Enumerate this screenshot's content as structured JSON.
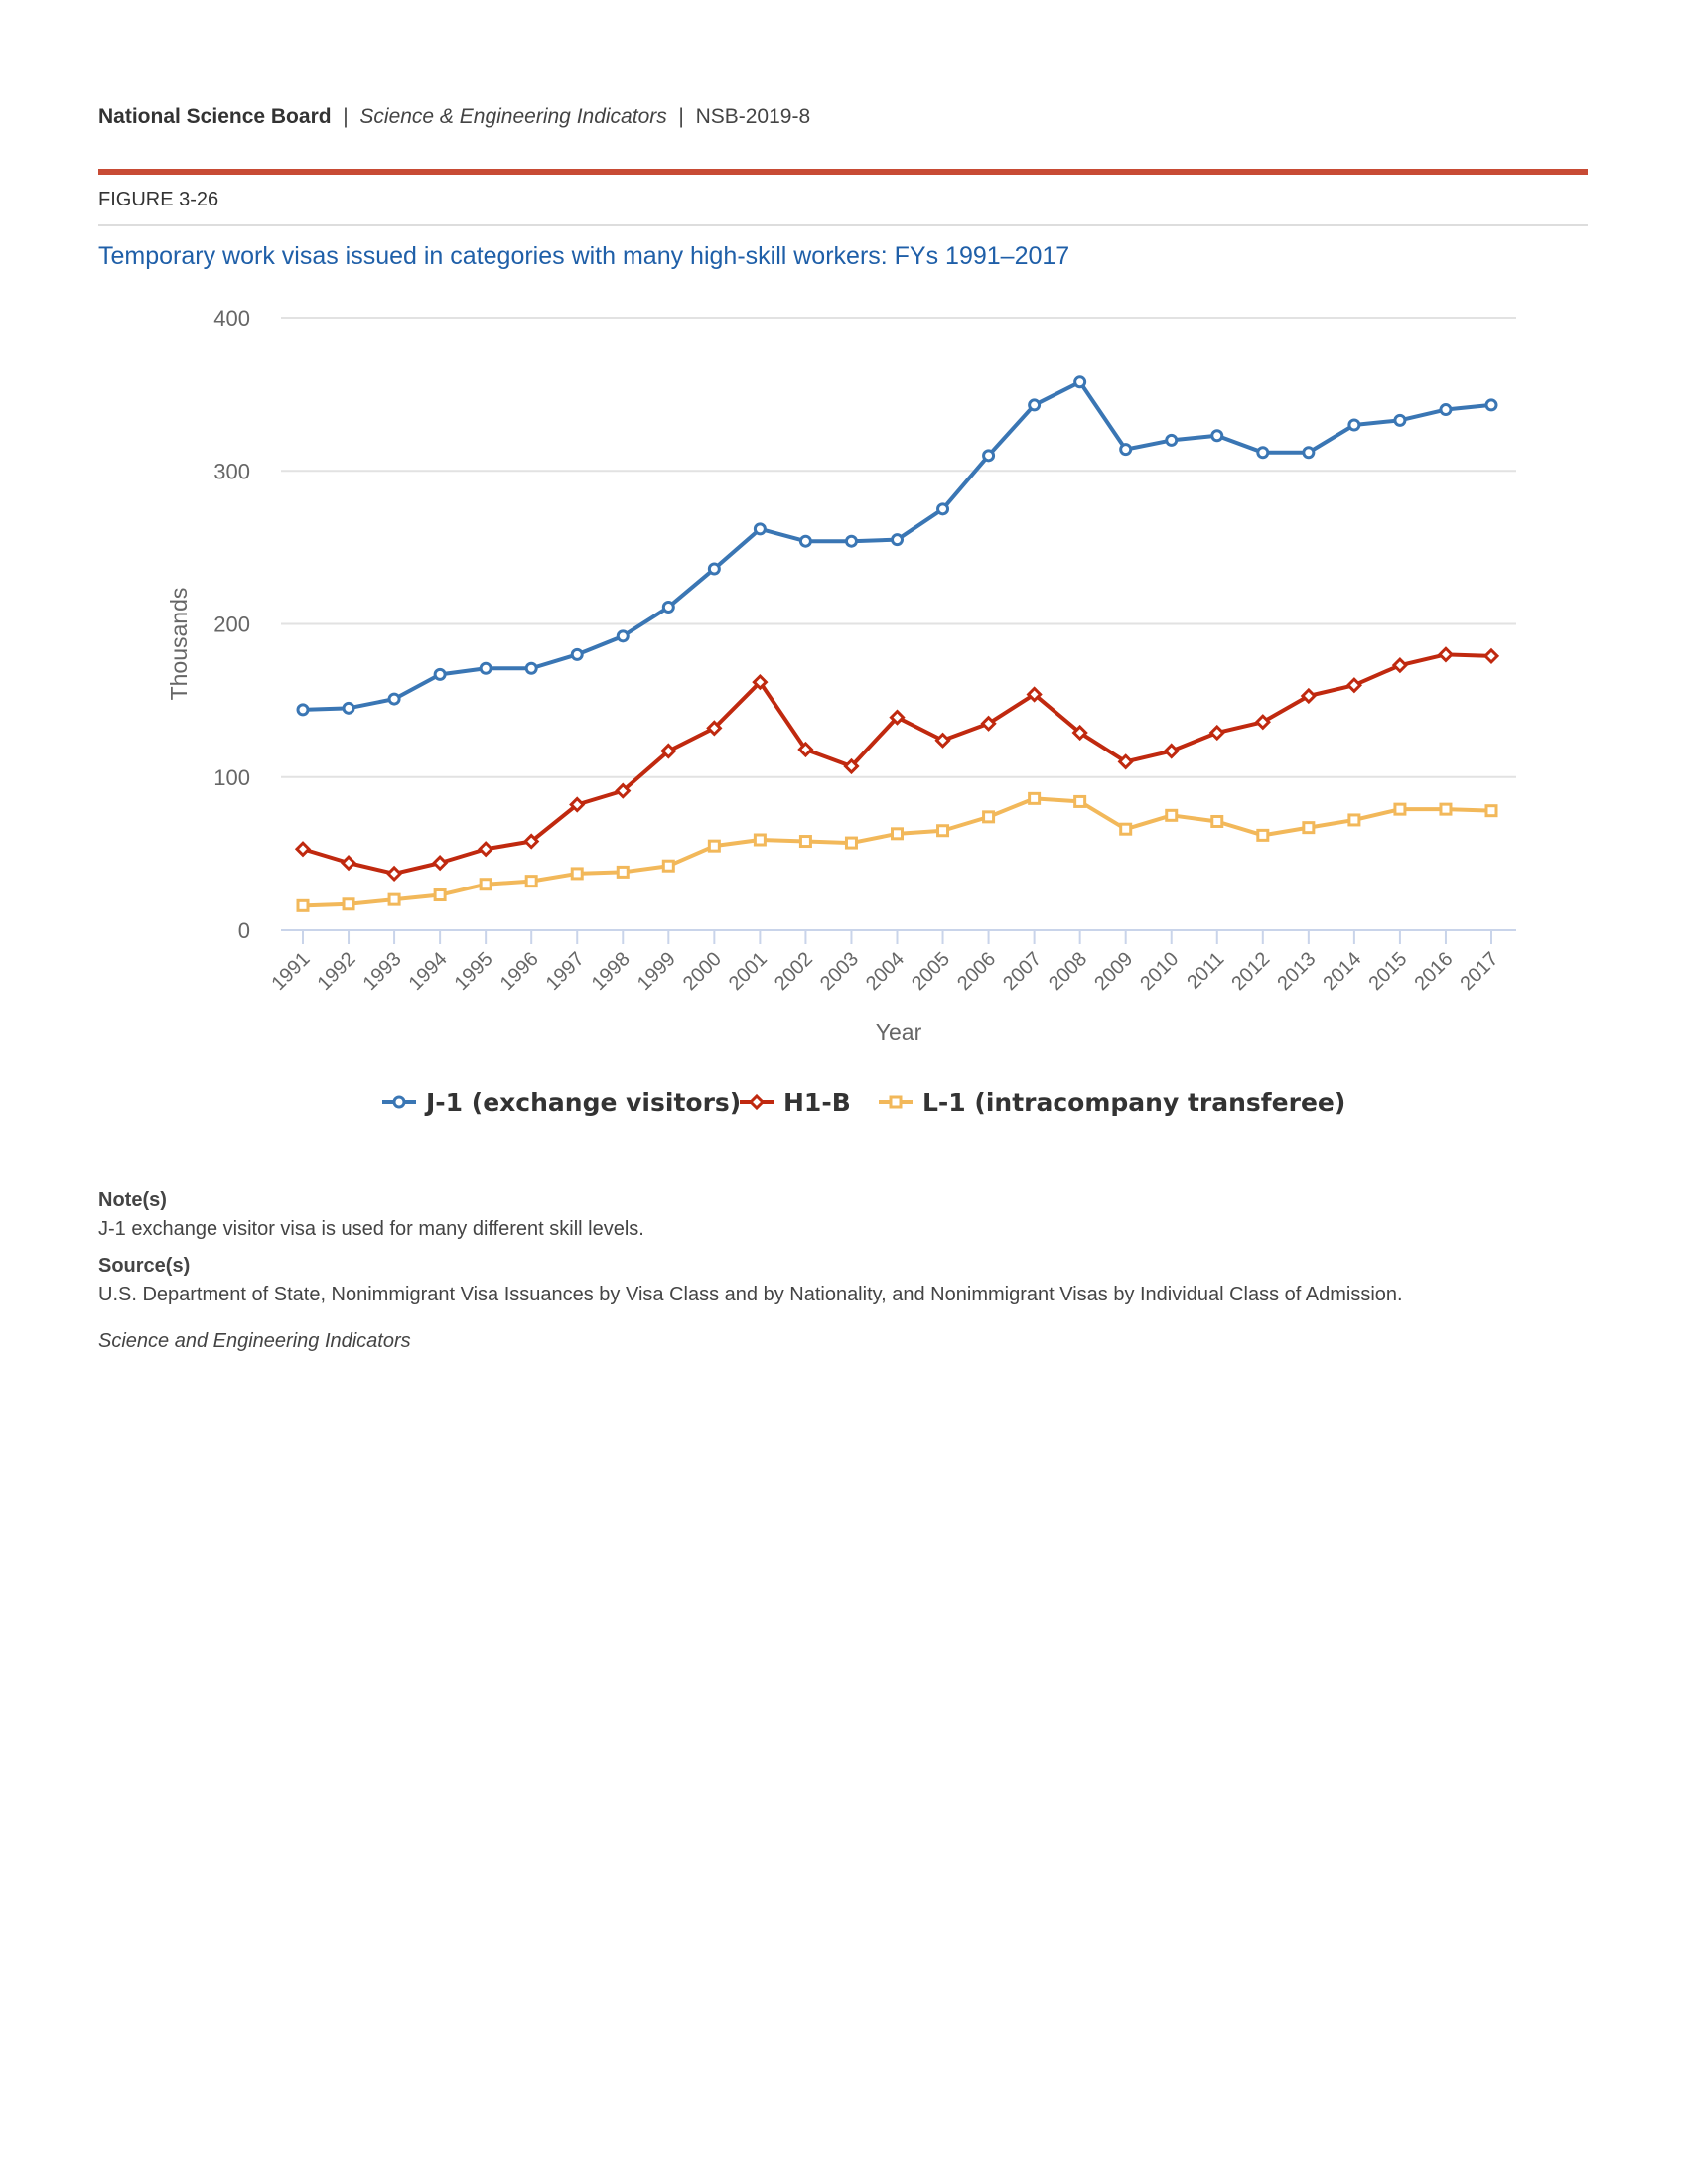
{
  "header": {
    "org": "National Science Board",
    "separator": "|",
    "publication": "Science & Engineering Indicators",
    "report_id": "NSB-2019-8"
  },
  "figure_label": "FIGURE 3-26",
  "title": "Temporary work visas issued in categories with many high-skill workers: FYs 1991–2017",
  "colors": {
    "accent_bar": "#c84b35",
    "title": "#1f5fa8",
    "j1": "#3a76b4",
    "h1b": "#c0290f",
    "l1": "#f2b85a"
  },
  "chart_data": {
    "type": "line",
    "title": "",
    "xlabel": "Year",
    "ylabel": "Thousands",
    "ylim": [
      0,
      400
    ],
    "yticks": [
      0,
      100,
      200,
      300,
      400
    ],
    "grid": true,
    "legend_position": "bottom",
    "x": [
      "1991",
      "1992",
      "1993",
      "1994",
      "1995",
      "1996",
      "1997",
      "1998",
      "1999",
      "2000",
      "2001",
      "2002",
      "2003",
      "2004",
      "2005",
      "2006",
      "2007",
      "2008",
      "2009",
      "2010",
      "2011",
      "2012",
      "2013",
      "2014",
      "2015",
      "2016",
      "2017"
    ],
    "series": [
      {
        "name": "J-1 (exchange visitors)",
        "color": "#3a76b4",
        "marker": "circle",
        "values": [
          144,
          145,
          151,
          167,
          171,
          171,
          180,
          192,
          211,
          236,
          262,
          254,
          254,
          255,
          275,
          310,
          343,
          358,
          314,
          320,
          323,
          312,
          312,
          330,
          333,
          340,
          343
        ]
      },
      {
        "name": "H1-B",
        "color": "#c0290f",
        "marker": "diamond",
        "values": [
          53,
          44,
          37,
          44,
          53,
          58,
          82,
          91,
          117,
          132,
          162,
          118,
          107,
          139,
          124,
          135,
          154,
          129,
          110,
          117,
          129,
          136,
          153,
          160,
          173,
          180,
          179
        ]
      },
      {
        "name": "L-1 (intracompany transferee)",
        "color": "#f2b85a",
        "marker": "square",
        "values": [
          16,
          17,
          20,
          23,
          30,
          32,
          37,
          38,
          42,
          55,
          59,
          58,
          57,
          63,
          65,
          74,
          86,
          84,
          66,
          75,
          71,
          62,
          67,
          72,
          79,
          79,
          78
        ]
      }
    ]
  },
  "notes": {
    "notes_heading": "Note(s)",
    "notes_text": "J-1 exchange visitor visa is used for many different skill levels.",
    "source_heading": "Source(s)",
    "source_text": "U.S. Department of State, Nonimmigrant Visa Issuances by Visa Class and by Nationality, and Nonimmigrant Visas by Individual Class of Admission.",
    "footer": "Science and Engineering Indicators"
  }
}
